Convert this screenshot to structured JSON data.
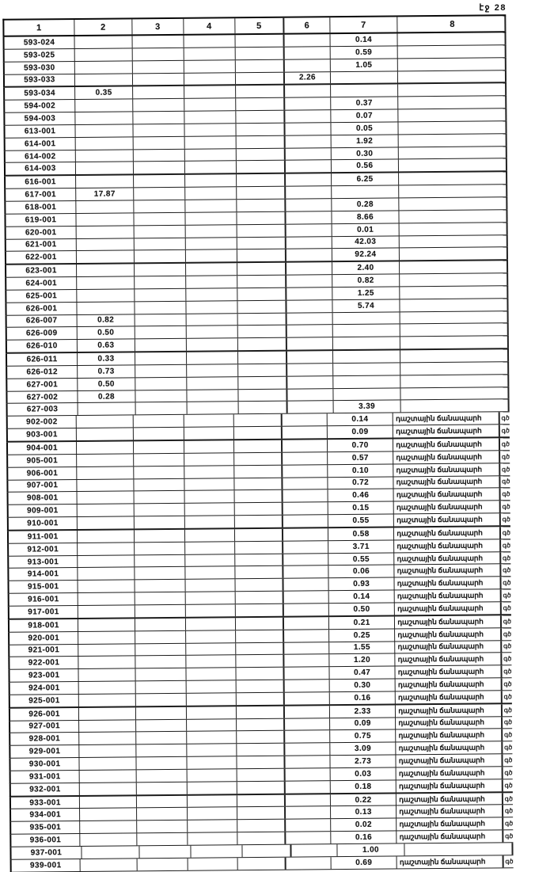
{
  "page_label": "էջ 28",
  "table": {
    "headers": [
      "1",
      "2",
      "3",
      "4",
      "5",
      "6",
      "7",
      "8"
    ],
    "note_text": "դաշտային ճանապարհ",
    "margin_fragment": "գծ",
    "rows": [
      {
        "code": "593-024",
        "col": 7,
        "value": "0.14",
        "note": false
      },
      {
        "code": "593-025",
        "col": 7,
        "value": "0.59",
        "note": false
      },
      {
        "code": "593-030",
        "col": 7,
        "value": "1.05",
        "note": false
      },
      {
        "code": "593-033",
        "col": 6,
        "value": "2.26",
        "note": false
      },
      {
        "code": "593-034",
        "col": 2,
        "value": "0.35",
        "note": false
      },
      {
        "code": "594-002",
        "col": 7,
        "value": "0.37",
        "note": false
      },
      {
        "code": "594-003",
        "col": 7,
        "value": "0.07",
        "note": false
      },
      {
        "code": "613-001",
        "col": 7,
        "value": "0.05",
        "note": false
      },
      {
        "code": "614-001",
        "col": 7,
        "value": "1.92",
        "note": false
      },
      {
        "code": "614-002",
        "col": 7,
        "value": "0.30",
        "note": false
      },
      {
        "code": "614-003",
        "col": 7,
        "value": "0.56",
        "note": false
      },
      {
        "code": "616-001",
        "col": 7,
        "value": "6.25",
        "note": false
      },
      {
        "code": "617-001",
        "col": 2,
        "value": "17.87",
        "note": false
      },
      {
        "code": "618-001",
        "col": 7,
        "value": "0.28",
        "note": false
      },
      {
        "code": "619-001",
        "col": 7,
        "value": "8.66",
        "note": false
      },
      {
        "code": "620-001",
        "col": 7,
        "value": "0.01",
        "note": false
      },
      {
        "code": "621-001",
        "col": 7,
        "value": "42.03",
        "note": false
      },
      {
        "code": "622-001",
        "col": 7,
        "value": "92.24",
        "note": false
      },
      {
        "code": "623-001",
        "col": 7,
        "value": "2.40",
        "note": false
      },
      {
        "code": "624-001",
        "col": 7,
        "value": "0.82",
        "note": false
      },
      {
        "code": "625-001",
        "col": 7,
        "value": "1.25",
        "note": false
      },
      {
        "code": "626-001",
        "col": 7,
        "value": "5.74",
        "note": false
      },
      {
        "code": "626-007",
        "col": 2,
        "value": "0.82",
        "note": false
      },
      {
        "code": "626-009",
        "col": 2,
        "value": "0.50",
        "note": false
      },
      {
        "code": "626-010",
        "col": 2,
        "value": "0.63",
        "note": false
      },
      {
        "code": "626-011",
        "col": 2,
        "value": "0.33",
        "note": false
      },
      {
        "code": "626-012",
        "col": 2,
        "value": "0.73",
        "note": false
      },
      {
        "code": "627-001",
        "col": 2,
        "value": "0.50",
        "note": false
      },
      {
        "code": "627-002",
        "col": 2,
        "value": "0.28",
        "note": false
      },
      {
        "code": "627-003",
        "col": 7,
        "value": "3.39",
        "note": false
      },
      {
        "code": "902-002",
        "col": 7,
        "value": "0.14",
        "note": true
      },
      {
        "code": "903-001",
        "col": 7,
        "value": "0.09",
        "note": true
      },
      {
        "code": "904-001",
        "col": 7,
        "value": "0.70",
        "note": true
      },
      {
        "code": "905-001",
        "col": 7,
        "value": "0.57",
        "note": true
      },
      {
        "code": "906-001",
        "col": 7,
        "value": "0.10",
        "note": true
      },
      {
        "code": "907-001",
        "col": 7,
        "value": "0.72",
        "note": true
      },
      {
        "code": "908-001",
        "col": 7,
        "value": "0.46",
        "note": true
      },
      {
        "code": "909-001",
        "col": 7,
        "value": "0.15",
        "note": true
      },
      {
        "code": "910-001",
        "col": 7,
        "value": "0.55",
        "note": true
      },
      {
        "code": "911-001",
        "col": 7,
        "value": "0.58",
        "note": true
      },
      {
        "code": "912-001",
        "col": 7,
        "value": "3.71",
        "note": true
      },
      {
        "code": "913-001",
        "col": 7,
        "value": "0.55",
        "note": true
      },
      {
        "code": "914-001",
        "col": 7,
        "value": "0.06",
        "note": true
      },
      {
        "code": "915-001",
        "col": 7,
        "value": "0.93",
        "note": true
      },
      {
        "code": "916-001",
        "col": 7,
        "value": "0.14",
        "note": true
      },
      {
        "code": "917-001",
        "col": 7,
        "value": "0.50",
        "note": true
      },
      {
        "code": "918-001",
        "col": 7,
        "value": "0.21",
        "note": true
      },
      {
        "code": "920-001",
        "col": 7,
        "value": "0.25",
        "note": true
      },
      {
        "code": "921-001",
        "col": 7,
        "value": "1.55",
        "note": true
      },
      {
        "code": "922-001",
        "col": 7,
        "value": "1.20",
        "note": true
      },
      {
        "code": "923-001",
        "col": 7,
        "value": "0.47",
        "note": true
      },
      {
        "code": "924-001",
        "col": 7,
        "value": "0.30",
        "note": true
      },
      {
        "code": "925-001",
        "col": 7,
        "value": "0.16",
        "note": true
      },
      {
        "code": "926-001",
        "col": 7,
        "value": "2.33",
        "note": true
      },
      {
        "code": "927-001",
        "col": 7,
        "value": "0.09",
        "note": true
      },
      {
        "code": "928-001",
        "col": 7,
        "value": "0.75",
        "note": true
      },
      {
        "code": "929-001",
        "col": 7,
        "value": "3.09",
        "note": true
      },
      {
        "code": "930-001",
        "col": 7,
        "value": "2.73",
        "note": true
      },
      {
        "code": "931-001",
        "col": 7,
        "value": "0.03",
        "note": true
      },
      {
        "code": "932-001",
        "col": 7,
        "value": "0.18",
        "note": true
      },
      {
        "code": "933-001",
        "col": 7,
        "value": "0.22",
        "note": true
      },
      {
        "code": "934-001",
        "col": 7,
        "value": "0.13",
        "note": true
      },
      {
        "code": "935-001",
        "col": 7,
        "value": "0.02",
        "note": true
      },
      {
        "code": "936-001",
        "col": 7,
        "value": "0.16",
        "note": true
      },
      {
        "code": "937-001",
        "col": 7,
        "value": "1.00",
        "note": false
      },
      {
        "code": "939-001",
        "col": 7,
        "value": "0.69",
        "note": true
      }
    ]
  }
}
